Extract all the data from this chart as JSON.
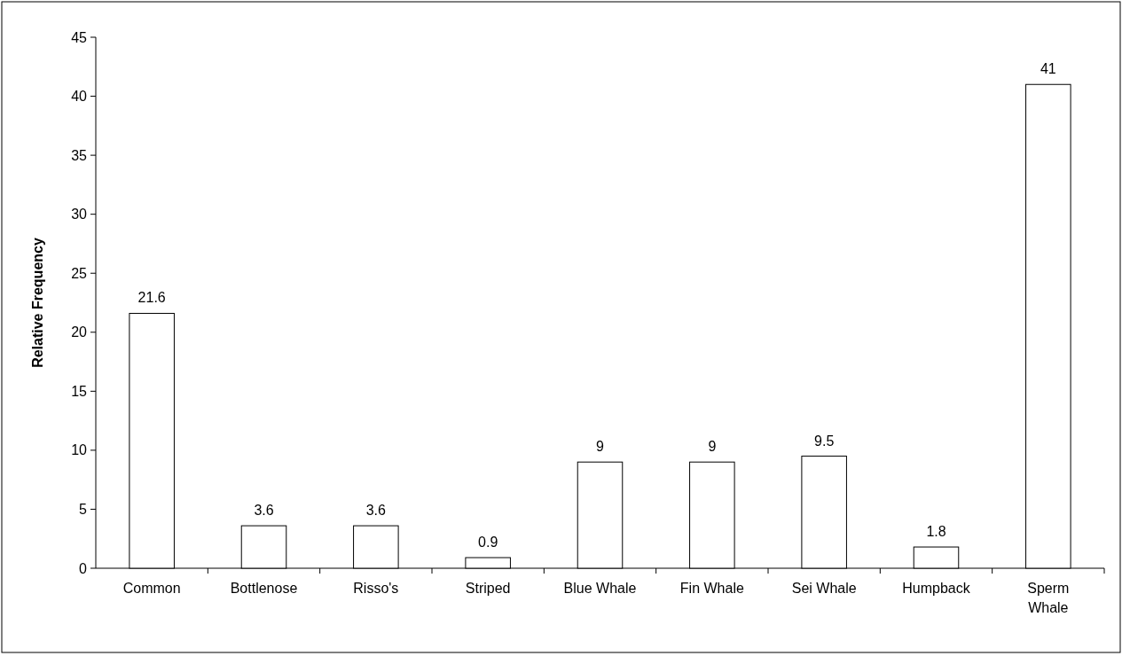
{
  "chart_data": {
    "type": "bar",
    "ylabel": "Relative Frequency",
    "categories": [
      "Common",
      "Bottlenose",
      "Risso's",
      "Striped",
      "Blue Whale",
      "Fin Whale",
      "Sei Whale",
      "Humpback",
      "Sperm Whale"
    ],
    "values": [
      21.6,
      3.6,
      3.6,
      0.9,
      9,
      9,
      9.5,
      1.8,
      41
    ],
    "color": "#ffffff",
    "ylim": [
      0,
      45
    ],
    "yticks": [
      0,
      5,
      10,
      15,
      20,
      25,
      30,
      35,
      40,
      45
    ],
    "data_labels": true,
    "grid": false
  }
}
